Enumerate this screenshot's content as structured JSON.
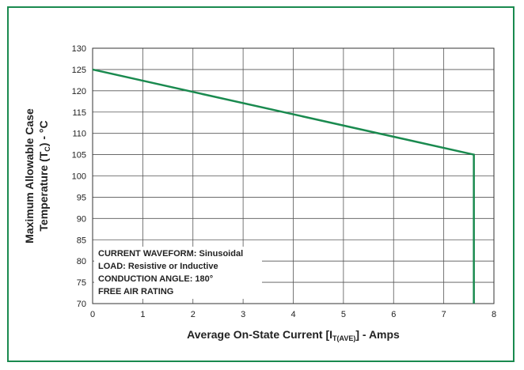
{
  "chart_data": {
    "type": "line",
    "xlabel": "Average On-State Current [I",
    "xlabel_sub": "T(AVE)",
    "xlabel_tail": "] - Amps",
    "ylabel_line1": "Maximum Allowable Case",
    "ylabel_line2_pre": "Temperature (T",
    "ylabel_line2_sub": "C",
    "ylabel_line2_post": ") - °C",
    "xlim": [
      0,
      8
    ],
    "ylim": [
      70,
      130
    ],
    "xticks": [
      "0",
      "1",
      "2",
      "3",
      "4",
      "5",
      "6",
      "7",
      "8"
    ],
    "yticks": [
      "70",
      "75",
      "80",
      "85",
      "90",
      "95",
      "100",
      "105",
      "110",
      "115",
      "120",
      "125",
      "130"
    ],
    "grid": true,
    "series": [
      {
        "x": [
          0,
          7.6,
          7.6
        ],
        "y": [
          125,
          105,
          70
        ],
        "color": "#1a8a4f"
      }
    ],
    "annotation": {
      "lines": [
        "CURRENT WAVEFORM: Sinusoidal",
        "LOAD: Resistive or Inductive",
        "CONDUCTION ANGLE: 180°",
        "FREE AIR RATING"
      ]
    }
  },
  "colors": {
    "frame": "#1a8a4f",
    "line": "#1a8a4f",
    "grid": "#555555"
  }
}
